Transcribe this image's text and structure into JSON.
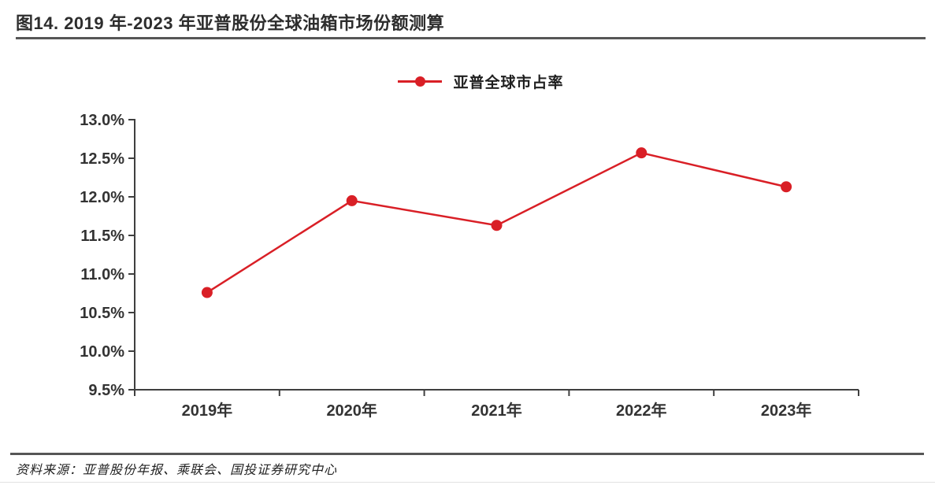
{
  "figure": {
    "title": "图14. 2019 年-2023 年亚普股份全球油箱市场份额测算",
    "source": "资料来源：亚普股份年报、乘联会、国投证券研究中心"
  },
  "chart_data": {
    "type": "line",
    "title": "2019 年-2023 年亚普股份全球油箱市场份额测算",
    "categories": [
      "2019年",
      "2020年",
      "2021年",
      "2022年",
      "2023年"
    ],
    "series": [
      {
        "name": "亚普全球市占率",
        "values": [
          10.76,
          11.95,
          11.63,
          12.57,
          12.13
        ]
      }
    ],
    "ylabel": "",
    "xlabel": "",
    "ylim": [
      9.5,
      13.0
    ],
    "ytick_step": 0.5,
    "ytick_labels": [
      "13.0%",
      "12.5%",
      "12.0%",
      "11.5%",
      "11.0%",
      "10.5%",
      "10.0%",
      "9.5%"
    ],
    "unit": "percent",
    "grid": false,
    "legend_position": "top-center",
    "marker": "circle"
  },
  "colors": {
    "series_red": "#d91f26",
    "axis": "#3f3f3f",
    "tick_text": "#333333",
    "title_text": "#2d2d2d",
    "rule": "#565656"
  }
}
